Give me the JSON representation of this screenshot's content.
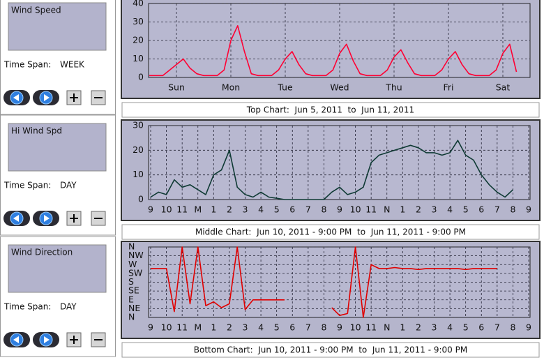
{
  "controls": [
    {
      "label": "Wind Speed",
      "time_span_label": "Time Span:",
      "time_span": "WEEK"
    },
    {
      "label": "Hi Wind Spd",
      "time_span_label": "Time Span:",
      "time_span": "DAY"
    },
    {
      "label": "Wind Direction",
      "time_span_label": "Time Span:",
      "time_span": "DAY"
    }
  ],
  "chart_data": [
    {
      "type": "line",
      "caption": "Top Chart:  Jun 5, 2011  to  Jun 11, 2011",
      "xlim": [
        0,
        168
      ],
      "xticks": [
        {
          "value": 12,
          "label": "Sun"
        },
        {
          "value": 36,
          "label": "Mon"
        },
        {
          "value": 60,
          "label": "Tue"
        },
        {
          "value": 84,
          "label": "Wed"
        },
        {
          "value": 108,
          "label": "Thu"
        },
        {
          "value": 132,
          "label": "Fri"
        },
        {
          "value": 156,
          "label": "Sat"
        }
      ],
      "ylim": [
        0,
        40
      ],
      "yticks": [
        0,
        10,
        20,
        30,
        40
      ],
      "grid": true,
      "x": [
        0,
        3,
        6,
        9,
        12,
        15,
        18,
        21,
        24,
        27,
        30,
        33,
        36,
        39,
        42,
        45,
        48,
        51,
        54,
        57,
        60,
        63,
        66,
        69,
        72,
        75,
        78,
        81,
        84,
        87,
        90,
        93,
        96,
        99,
        102,
        105,
        108,
        111,
        114,
        117,
        120,
        123,
        126,
        129,
        132,
        135,
        138,
        141,
        144,
        147,
        150,
        153,
        156,
        159,
        162
      ],
      "series": [
        {
          "color": "#ff0033",
          "values": [
            1,
            1,
            1,
            4,
            7,
            10,
            5,
            2,
            1,
            1,
            1,
            4,
            20,
            28,
            14,
            2,
            1,
            1,
            1,
            4,
            10,
            14,
            7,
            2,
            1,
            1,
            1,
            4,
            13,
            18,
            9,
            2,
            1,
            1,
            1,
            4,
            11,
            15,
            8,
            2,
            1,
            1,
            1,
            4,
            10,
            14,
            7,
            2,
            1,
            1,
            1,
            4,
            13,
            18,
            3
          ]
        }
      ]
    },
    {
      "type": "line",
      "caption": "Middle Chart:  Jun 10, 2011 - 9:00 PM  to  Jun 11, 2011 - 9:00 PM",
      "xlim": [
        0,
        24
      ],
      "xticks": [
        {
          "value": 0,
          "label": "9"
        },
        {
          "value": 1,
          "label": "10"
        },
        {
          "value": 2,
          "label": "11"
        },
        {
          "value": 3,
          "label": "M"
        },
        {
          "value": 4,
          "label": "1"
        },
        {
          "value": 5,
          "label": "2"
        },
        {
          "value": 6,
          "label": "3"
        },
        {
          "value": 7,
          "label": "4"
        },
        {
          "value": 8,
          "label": "5"
        },
        {
          "value": 9,
          "label": "6"
        },
        {
          "value": 10,
          "label": "7"
        },
        {
          "value": 11,
          "label": "8"
        },
        {
          "value": 12,
          "label": "9"
        },
        {
          "value": 13,
          "label": "10"
        },
        {
          "value": 14,
          "label": "11"
        },
        {
          "value": 15,
          "label": "N"
        },
        {
          "value": 16,
          "label": "1"
        },
        {
          "value": 17,
          "label": "2"
        },
        {
          "value": 18,
          "label": "3"
        },
        {
          "value": 19,
          "label": "4"
        },
        {
          "value": 20,
          "label": "5"
        },
        {
          "value": 21,
          "label": "6"
        },
        {
          "value": 22,
          "label": "7"
        },
        {
          "value": 23,
          "label": "8"
        },
        {
          "value": 24,
          "label": "9"
        }
      ],
      "ylim": [
        0,
        30
      ],
      "yticks": [
        0,
        10,
        20,
        30
      ],
      "grid": true,
      "x": [
        0,
        0.5,
        1,
        1.5,
        2,
        2.5,
        3,
        3.5,
        4,
        4.5,
        5,
        5.5,
        6,
        6.5,
        7,
        7.5,
        8,
        8.5,
        9,
        9.5,
        10,
        10.5,
        11,
        11.5,
        12,
        12.5,
        13,
        13.5,
        14,
        14.5,
        15,
        15.5,
        16,
        16.5,
        17,
        17.5,
        18,
        18.5,
        19,
        19.5,
        20,
        20.5,
        21,
        21.5,
        22,
        22.5,
        23
      ],
      "series": [
        {
          "color": "#0f3a34",
          "values": [
            1,
            3,
            2,
            8,
            5,
            6,
            4,
            2,
            10,
            12,
            20,
            5,
            2,
            1,
            3,
            1,
            0.5,
            0,
            0,
            0,
            0,
            0,
            0,
            3,
            5,
            2,
            3,
            5,
            15,
            18,
            19,
            20,
            21,
            22,
            21,
            19,
            19,
            18,
            19,
            24,
            18,
            16,
            10,
            6,
            3,
            1,
            4
          ]
        }
      ]
    },
    {
      "type": "line",
      "caption": "Bottom Chart:  Jun 10, 2011 - 9:00 PM  to  Jun 11, 2011 - 9:00 PM",
      "xlim": [
        0,
        24
      ],
      "xticks": [
        {
          "value": 0,
          "label": "9"
        },
        {
          "value": 1,
          "label": "10"
        },
        {
          "value": 2,
          "label": "11"
        },
        {
          "value": 3,
          "label": "M"
        },
        {
          "value": 4,
          "label": "1"
        },
        {
          "value": 5,
          "label": "2"
        },
        {
          "value": 6,
          "label": "3"
        },
        {
          "value": 7,
          "label": "4"
        },
        {
          "value": 8,
          "label": "5"
        },
        {
          "value": 9,
          "label": "6"
        },
        {
          "value": 10,
          "label": "7"
        },
        {
          "value": 11,
          "label": "8"
        },
        {
          "value": 12,
          "label": "9"
        },
        {
          "value": 13,
          "label": "10"
        },
        {
          "value": 14,
          "label": "11"
        },
        {
          "value": 15,
          "label": "N"
        },
        {
          "value": 16,
          "label": "1"
        },
        {
          "value": 17,
          "label": "2"
        },
        {
          "value": 18,
          "label": "3"
        },
        {
          "value": 19,
          "label": "4"
        },
        {
          "value": 20,
          "label": "5"
        },
        {
          "value": 21,
          "label": "6"
        },
        {
          "value": 22,
          "label": "7"
        },
        {
          "value": 23,
          "label": "8"
        },
        {
          "value": 24,
          "label": "9"
        }
      ],
      "ylim": [
        0,
        360
      ],
      "yticks": [
        {
          "value": 0,
          "label": "N"
        },
        {
          "value": 45,
          "label": "NE"
        },
        {
          "value": 90,
          "label": "E"
        },
        {
          "value": 135,
          "label": "SE"
        },
        {
          "value": 180,
          "label": "S"
        },
        {
          "value": 225,
          "label": "SW"
        },
        {
          "value": 270,
          "label": "W"
        },
        {
          "value": 315,
          "label": "NW"
        },
        {
          "value": 360,
          "label": "N"
        }
      ],
      "grid": true,
      "x": [
        0,
        0.5,
        1,
        1.5,
        2,
        2.5,
        3,
        3.5,
        4,
        4.5,
        5,
        5.5,
        6,
        6.5,
        7,
        7.5,
        8,
        8.5,
        9,
        9.5,
        10,
        10.5,
        11,
        11.5,
        12,
        12.5,
        13,
        13.5,
        14,
        14.5,
        15,
        15.5,
        16,
        16.5,
        17,
        17.5,
        18,
        18.5,
        19,
        19.5,
        20,
        20.5,
        21,
        21.5,
        22
      ],
      "series": [
        {
          "color": "#e00000",
          "values": [
            250,
            250,
            250,
            30,
            360,
            70,
            360,
            60,
            80,
            50,
            70,
            360,
            40,
            90,
            90,
            90,
            90,
            90,
            null,
            null,
            null,
            null,
            null,
            50,
            10,
            20,
            360,
            0,
            270,
            250,
            250,
            255,
            250,
            250,
            245,
            250,
            250,
            250,
            250,
            250,
            245,
            250,
            250,
            250,
            250
          ]
        }
      ]
    }
  ]
}
